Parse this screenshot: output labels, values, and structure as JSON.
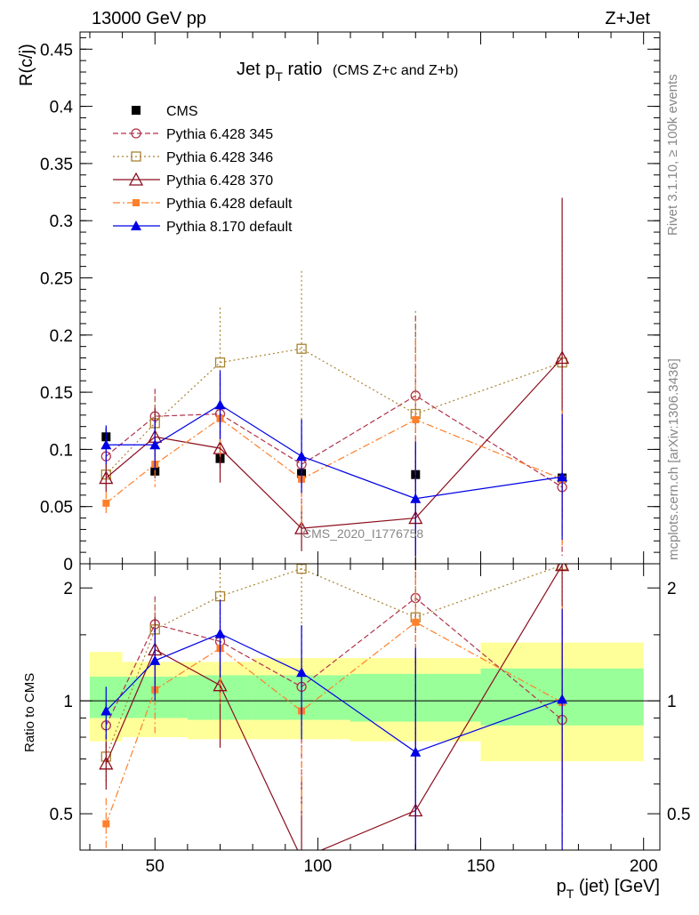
{
  "header": {
    "beam": "13000 GeV pp",
    "process": "Z+Jet",
    "rivet": "Rivet 3.1.10, ≥ 100k events",
    "mcplots": "mcplots.cern.ch [arXiv:1306.3436]"
  },
  "chart_data": [
    {
      "type": "scatter",
      "title_main": "Jet p",
      "title_sub": "T",
      "title_tail": " ratio",
      "title_paren": "(CMS  Z+c and Z+b)",
      "ylabel": "R(c/j)",
      "analysis_id": "CMS_2020_I1776758",
      "xlim": [
        27,
        205
      ],
      "ylim": [
        0,
        0.465
      ],
      "yticks": [
        0,
        0.05,
        0.1,
        0.15,
        0.2,
        0.25,
        0.3,
        0.35,
        0.4,
        0.45
      ],
      "ytick_labels": [
        "0",
        "0.05",
        "0.1",
        "0.15",
        "0.2",
        "0.25",
        "0.3",
        "0.35",
        "0.4",
        "0.45"
      ],
      "legend_position": "top-left",
      "series": [
        {
          "name": "CMS",
          "color": "#000000",
          "marker": "square-filled",
          "dash": "none",
          "x": [
            35,
            50,
            70,
            95,
            130,
            175
          ],
          "y": [
            0.111,
            0.081,
            0.092,
            0.079,
            0.078,
            0.075
          ],
          "err": [
            0.008,
            0.006,
            0.008,
            0.009,
            0.012,
            0.012
          ]
        },
        {
          "name": "Pythia 6.428 345",
          "color": "#b0344c",
          "marker": "circle-open",
          "dash": "6,3",
          "x": [
            35,
            50,
            70,
            95,
            130,
            175
          ],
          "y": [
            0.094,
            0.129,
            0.131,
            0.087,
            0.147,
            0.067
          ],
          "err": [
            0.015,
            0.024,
            0.035,
            0.04,
            0.07,
            0.06
          ]
        },
        {
          "name": "Pythia 6.428 346",
          "color": "#a88432",
          "marker": "square-open",
          "dash": "2,3",
          "x": [
            35,
            50,
            70,
            95,
            130,
            175
          ],
          "y": [
            0.078,
            0.123,
            0.176,
            0.188,
            0.131,
            0.176
          ],
          "err": [
            0.012,
            0.024,
            0.048,
            0.068,
            0.09,
            0.11
          ]
        },
        {
          "name": "Pythia 6.428 370",
          "color": "#8b0e1e",
          "marker": "triangle-open",
          "dash": "none",
          "x": [
            35,
            50,
            70,
            95,
            130,
            175
          ],
          "y": [
            0.075,
            0.111,
            0.101,
            0.031,
            0.04,
            0.18
          ],
          "err": [
            0.012,
            0.025,
            0.03,
            0.02,
            0.06,
            0.14
          ]
        },
        {
          "name": "Pythia 6.428 default",
          "color": "#ff7f2a",
          "marker": "square-filled-small",
          "dash": "8,3,2,3",
          "x": [
            35,
            50,
            70,
            95,
            130,
            175
          ],
          "y": [
            0.053,
            0.087,
            0.127,
            0.074,
            0.126,
            0.074
          ],
          "err": [
            0.01,
            0.02,
            0.035,
            0.04,
            0.07,
            0.06
          ]
        },
        {
          "name": "Pythia 8.170 default",
          "color": "#0000e6",
          "marker": "triangle-filled",
          "dash": "none",
          "x": [
            35,
            50,
            70,
            95,
            130,
            175
          ],
          "y": [
            0.104,
            0.104,
            0.139,
            0.094,
            0.057,
            0.076
          ],
          "err": [
            0.017,
            0.022,
            0.03,
            0.032,
            0.05,
            0.055
          ]
        }
      ]
    },
    {
      "type": "scatter",
      "ylabel": "Ratio to CMS",
      "xlabel_main": "p",
      "xlabel_sub": "T",
      "xlabel_tail": " (jet) [GeV]",
      "xlim": [
        27,
        205
      ],
      "ylim": [
        0.4,
        2.32
      ],
      "yscale": "log",
      "xticks": [
        50,
        100,
        150,
        200
      ],
      "xtick_labels": [
        "50",
        "100",
        "150",
        "200"
      ],
      "yticks": [
        0.5,
        1,
        2
      ],
      "ytick_labels": [
        "0.5",
        "1",
        "2"
      ],
      "bands": {
        "x_edges": [
          30,
          40,
          60,
          80,
          110,
          150,
          200
        ],
        "inner": [
          [
            0.9,
            1.16
          ],
          [
            0.9,
            1.16
          ],
          [
            0.89,
            1.17
          ],
          [
            0.89,
            1.17
          ],
          [
            0.88,
            1.18
          ],
          [
            0.86,
            1.22
          ]
        ],
        "outer": [
          [
            0.78,
            1.35
          ],
          [
            0.8,
            1.27
          ],
          [
            0.79,
            1.27
          ],
          [
            0.79,
            1.3
          ],
          [
            0.78,
            1.3
          ],
          [
            0.69,
            1.43
          ]
        ],
        "inner_color": "#99ff99",
        "outer_color": "#ffff99"
      },
      "series": [
        {
          "name": "Pythia 6.428 345",
          "x": [
            35,
            50,
            70,
            95,
            130,
            175
          ],
          "y": [
            0.86,
            1.6,
            1.44,
            1.09,
            1.88,
            0.89
          ],
          "err": [
            0.13,
            0.3,
            0.4,
            0.5,
            0.9,
            0.8
          ]
        },
        {
          "name": "Pythia 6.428 346",
          "x": [
            35,
            50,
            70,
            95,
            130,
            175
          ],
          "y": [
            0.71,
            1.55,
            1.9,
            2.25,
            1.67,
            2.3
          ],
          "err": [
            0.1,
            0.3,
            0.5,
            0.8,
            1.2,
            1.4
          ]
        },
        {
          "name": "Pythia 6.428 370",
          "x": [
            35,
            50,
            70,
            95,
            130,
            175
          ],
          "y": [
            0.68,
            1.37,
            1.1,
            0.38,
            0.51,
            2.3
          ],
          "err": [
            0.1,
            0.3,
            0.35,
            0.25,
            0.8,
            1.8
          ]
        },
        {
          "name": "Pythia 6.428 default",
          "x": [
            35,
            50,
            70,
            95,
            130,
            175
          ],
          "y": [
            0.47,
            1.07,
            1.38,
            0.94,
            1.62,
            0.99
          ],
          "err": [
            0.08,
            0.25,
            0.4,
            0.45,
            0.9,
            0.8
          ]
        },
        {
          "name": "Pythia 8.170 default",
          "x": [
            35,
            50,
            70,
            95,
            130,
            175
          ],
          "y": [
            0.94,
            1.28,
            1.51,
            1.19,
            0.73,
            1.01
          ],
          "err": [
            0.15,
            0.28,
            0.35,
            0.4,
            0.65,
            0.75
          ]
        }
      ]
    }
  ]
}
